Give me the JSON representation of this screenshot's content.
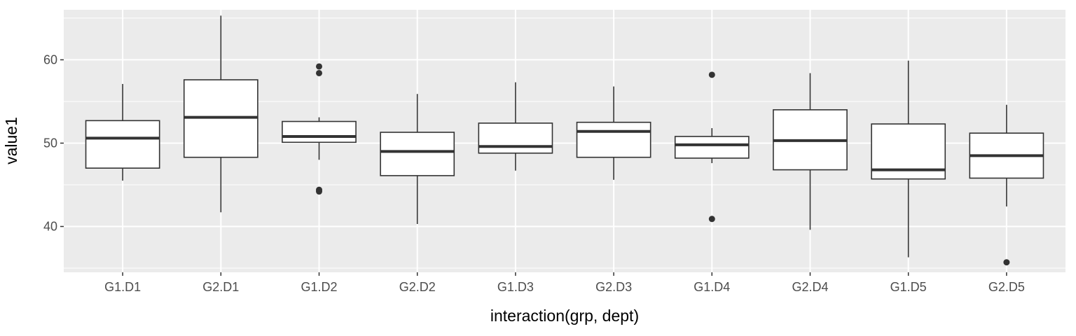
{
  "chart_data": {
    "type": "boxplot",
    "xlabel": "interaction(grp, dept)",
    "ylabel": "value1",
    "ylim": [
      34.5,
      66.0
    ],
    "y_ticks": [
      40,
      50,
      60
    ],
    "grid": true,
    "categories": [
      "G1.D1",
      "G2.D1",
      "G1.D2",
      "G2.D2",
      "G1.D3",
      "G2.D3",
      "G1.D4",
      "G2.D4",
      "G1.D5",
      "G2.D5"
    ],
    "boxes": [
      {
        "min": 45.5,
        "q1": 47.0,
        "median": 50.6,
        "q3": 52.7,
        "max": 57.1,
        "outliers": []
      },
      {
        "min": 41.7,
        "q1": 48.3,
        "median": 53.1,
        "q3": 57.6,
        "max": 65.3,
        "outliers": []
      },
      {
        "min": 48.0,
        "q1": 50.1,
        "median": 50.8,
        "q3": 52.6,
        "max": 53.1,
        "outliers": [
          59.2,
          58.4,
          44.4,
          44.2
        ]
      },
      {
        "min": 40.3,
        "q1": 46.1,
        "median": 49.0,
        "q3": 51.3,
        "max": 55.9,
        "outliers": []
      },
      {
        "min": 46.7,
        "q1": 48.8,
        "median": 49.6,
        "q3": 52.4,
        "max": 57.3,
        "outliers": []
      },
      {
        "min": 45.6,
        "q1": 48.3,
        "median": 51.4,
        "q3": 52.5,
        "max": 56.8,
        "outliers": []
      },
      {
        "min": 47.6,
        "q1": 48.2,
        "median": 49.8,
        "q3": 50.8,
        "max": 51.8,
        "outliers": [
          58.2,
          40.9
        ]
      },
      {
        "min": 39.6,
        "q1": 46.8,
        "median": 50.3,
        "q3": 54.0,
        "max": 58.4,
        "outliers": []
      },
      {
        "min": 36.3,
        "q1": 45.7,
        "median": 46.8,
        "q3": 52.3,
        "max": 59.9,
        "outliers": []
      },
      {
        "min": 42.4,
        "q1": 45.8,
        "median": 48.5,
        "q3": 51.2,
        "max": 54.6,
        "outliers": [
          35.7
        ]
      }
    ],
    "colors": {
      "panel": "#EBEBEB",
      "grid_major": "#FFFFFF",
      "box_fill": "#FFFFFF",
      "box_line": "#333333",
      "tick_text": "#4D4D4D",
      "tick_mark": "#333333"
    }
  }
}
